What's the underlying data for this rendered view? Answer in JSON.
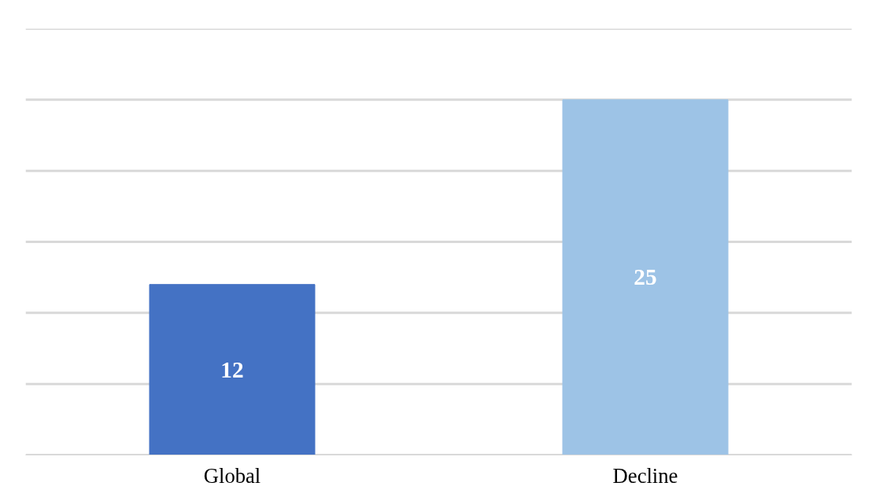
{
  "chart_data": {
    "type": "bar",
    "categories": [
      "Global",
      "Decline"
    ],
    "values": [
      12,
      25
    ],
    "colors": [
      "#4472c4",
      "#9dc3e6"
    ],
    "ylim": [
      0,
      30
    ],
    "yticks": [
      0,
      5,
      10,
      15,
      20,
      25,
      30
    ],
    "grid": "y",
    "tick_labels": "x",
    "data_labels": true
  }
}
